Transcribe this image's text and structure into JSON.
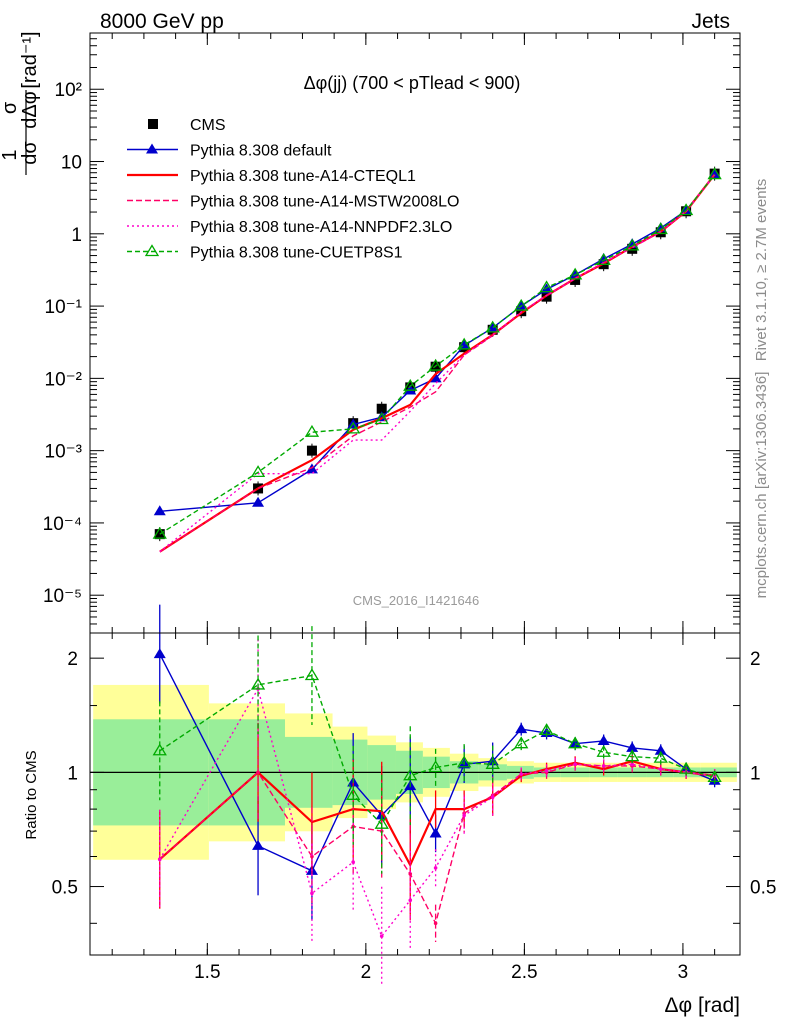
{
  "header": {
    "left": "8000 GeV pp",
    "right": "Jets",
    "side_top": "Rivet 3.1.10, ≥ 2.7M events",
    "side_bottom": "mcplots.cern.ch [arXiv:1306.3436]"
  },
  "chart_data": {
    "type": "line",
    "title": "Δφ(jj) (700 < pTlead <  900)",
    "watermark": "CMS_2016_I1421646",
    "xlabel": "Δφ [rad]",
    "ylabel_top": "1 dσ / σ dΔφ [rad⁻¹]",
    "ylabel_bottom": "Ratio to CMS",
    "xlim": [
      1.13,
      3.18
    ],
    "ylim_top": [
      3e-06,
      600
    ],
    "ylog_top": true,
    "ylim_bottom": [
      0.33,
      2.33
    ],
    "ylog_bottom": true,
    "x_ticks": [
      "1.5",
      "2",
      "2.5",
      "3"
    ],
    "y_ticks_top": [
      "10⁻⁵",
      "10⁻⁴",
      "10⁻³",
      "10⁻²",
      "10⁻¹",
      "1",
      "10",
      "10²"
    ],
    "y_ticks_bottom": [
      "0.5",
      "1",
      "2"
    ],
    "x": [
      1.35,
      1.66,
      1.83,
      1.96,
      2.05,
      2.14,
      2.22,
      2.31,
      2.4,
      2.49,
      2.57,
      2.66,
      2.75,
      2.84,
      2.93,
      3.01,
      3.1
    ],
    "legend": [
      "CMS",
      "Pythia 8.308 default",
      "Pythia 8.308 tune-A14-CTEQL1",
      "Pythia 8.308 tune-A14-MSTW2008LO",
      "Pythia 8.308 tune-A14-NNPDF2.3LO",
      "Pythia 8.308 tune-CUETP8S1"
    ],
    "series": [
      {
        "name": "CMS",
        "color": "#000000",
        "values": [
          7e-05,
          0.0003,
          0.001,
          0.0024,
          0.0038,
          0.0075,
          0.0145,
          0.027,
          0.047,
          0.085,
          0.135,
          0.23,
          0.38,
          0.62,
          1.05,
          2.05,
          6.8
        ],
        "band_inner": [
          1.38,
          1.38,
          1.24,
          1.22,
          1.18,
          1.14,
          1.1,
          1.07,
          1.05,
          1.04,
          1.03,
          1.03,
          1.03,
          1.03,
          1.03,
          1.03,
          1.03
        ],
        "band_outer": [
          1.7,
          1.52,
          1.43,
          1.32,
          1.25,
          1.2,
          1.16,
          1.12,
          1.09,
          1.07,
          1.06,
          1.06,
          1.06,
          1.06,
          1.06,
          1.06,
          1.06
        ]
      },
      {
        "name": "Pythia 8.308 default",
        "color": "#0000cc",
        "values": [
          0.000145,
          0.00019,
          0.00055,
          0.0023,
          0.0029,
          0.0068,
          0.01,
          0.0285,
          0.05,
          0.1,
          0.17,
          0.27,
          0.45,
          0.72,
          1.2,
          2.1,
          6.5
        ],
        "ratio": [
          2.05,
          0.64,
          0.55,
          0.94,
          0.77,
          0.92,
          0.69,
          1.05,
          1.07,
          1.3,
          1.27,
          1.19,
          1.21,
          1.16,
          1.14,
          1.02,
          0.95
        ]
      },
      {
        "name": "Pythia 8.308 tune-A14-CTEQL1",
        "color": "#ff0000",
        "values": [
          4e-05,
          0.0003,
          0.00074,
          0.00195,
          0.0028,
          0.0043,
          0.0115,
          0.022,
          0.04,
          0.08,
          0.14,
          0.24,
          0.39,
          0.66,
          1.07,
          2.05,
          6.6
        ],
        "ratio": [
          0.59,
          1.0,
          0.74,
          0.8,
          0.79,
          0.57,
          0.8,
          0.8,
          0.86,
          0.98,
          1.02,
          1.06,
          1.02,
          1.07,
          1.02,
          1.0,
          0.98
        ]
      },
      {
        "name": "Pythia 8.308 tune-A14-MSTW2008LO",
        "color": "#ff0066",
        "dash": "6,3",
        "values": [
          4e-05,
          0.0003,
          0.00058,
          0.0016,
          0.0025,
          0.004,
          0.0065,
          0.021,
          0.039,
          0.082,
          0.14,
          0.24,
          0.4,
          0.64,
          1.07,
          2.05,
          6.6
        ],
        "ratio": [
          0.59,
          1.0,
          0.6,
          0.72,
          0.7,
          0.54,
          0.4,
          0.78,
          0.87,
          0.99,
          1.0,
          1.05,
          1.04,
          1.04,
          1.02,
          1.0,
          0.98
        ]
      },
      {
        "name": "Pythia 8.308 tune-A14-NNPDF2.3LO",
        "color": "#ff00cc",
        "dash": "2,3",
        "values": [
          4e-05,
          0.00048,
          0.00048,
          0.0014,
          0.0014,
          0.0035,
          0.0085,
          0.021,
          0.04,
          0.083,
          0.14,
          0.24,
          0.4,
          0.65,
          1.07,
          2.05,
          6.6
        ],
        "ratio": [
          0.59,
          1.66,
          0.48,
          0.58,
          0.37,
          0.46,
          0.56,
          0.77,
          0.86,
          0.99,
          1.01,
          1.05,
          1.04,
          1.05,
          1.02,
          1.0,
          0.98
        ]
      },
      {
        "name": "Pythia 8.308 tune-CUETP8S1",
        "color": "#00aa00",
        "dash": "5,3",
        "marker": "open-triangle",
        "values": [
          7e-05,
          0.0005,
          0.0018,
          0.002,
          0.0027,
          0.0078,
          0.0148,
          0.029,
          0.05,
          0.1,
          0.18,
          0.27,
          0.43,
          0.68,
          1.15,
          2.1,
          6.6
        ],
        "ratio": [
          1.14,
          1.7,
          1.8,
          0.87,
          0.73,
          0.98,
          1.03,
          1.06,
          1.05,
          1.19,
          1.29,
          1.19,
          1.13,
          1.1,
          1.09,
          1.02,
          0.97
        ]
      }
    ]
  }
}
